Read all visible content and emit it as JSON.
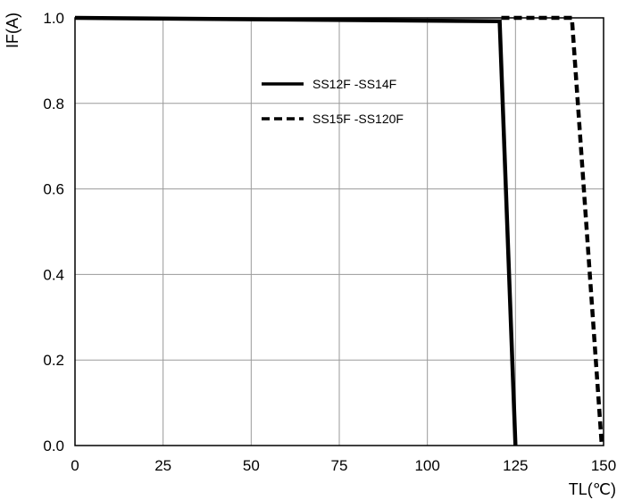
{
  "chart_data": {
    "type": "line",
    "xlabel": "TL(℃)",
    "ylabel": "IF(A)",
    "xlim": [
      0,
      150
    ],
    "ylim": [
      0.0,
      1.0
    ],
    "x_ticks": [
      0,
      25,
      50,
      75,
      100,
      125,
      150
    ],
    "x_tick_labels": [
      "0",
      "25",
      "50",
      "75",
      "100",
      "125",
      "150"
    ],
    "y_ticks": [
      0.0,
      0.2,
      0.4,
      0.6,
      0.8,
      1.0
    ],
    "y_tick_labels": [
      "0.0",
      "0.2",
      "0.4",
      "0.6",
      "0.8",
      "1.0"
    ],
    "grid": true,
    "legend_position": "top-center",
    "series": [
      {
        "name": "SS12F -SS14F",
        "style": "solid",
        "color": "#000000",
        "points": [
          [
            0,
            1.0
          ],
          [
            120.5,
            0.992
          ],
          [
            125,
            0.0
          ]
        ]
      },
      {
        "name": "SS15F -SS120F",
        "style": "dashed",
        "color": "#000000",
        "points": [
          [
            121,
            1.0
          ],
          [
            141,
            1.0
          ],
          [
            149.5,
            0.0
          ]
        ]
      }
    ]
  }
}
